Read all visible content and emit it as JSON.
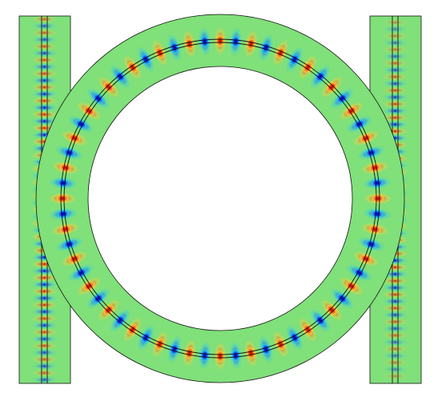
{
  "colors": {
    "background": "#ffffff",
    "field_zero": "#80e07a",
    "field_positive": "#d81a12",
    "field_negative": "#1020cc",
    "outline": "#111111"
  },
  "field": {
    "ring_antinodes": 64
  }
}
